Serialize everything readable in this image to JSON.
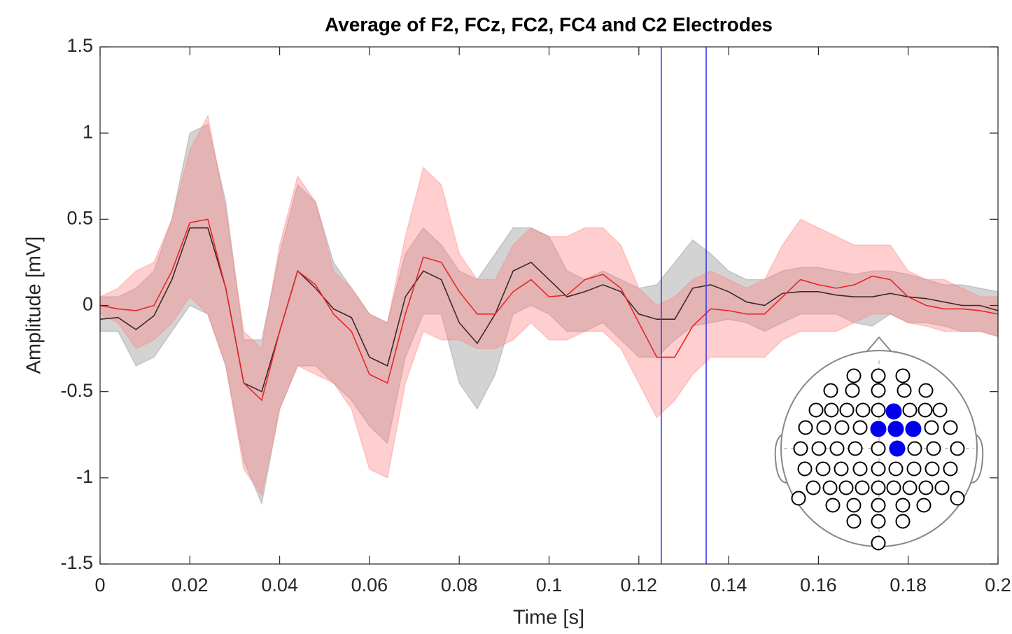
{
  "chart_data": {
    "type": "line",
    "title": "Average of F2, FCz, FC2, FC4 and C2 Electrodes",
    "x_label": "Time [s]",
    "y_label": "Amplitude [mV]",
    "xlim": [
      0,
      0.2
    ],
    "ylim": [
      -1.5,
      1.5
    ],
    "xticks": [
      0,
      0.02,
      0.04,
      0.06,
      0.08,
      0.1,
      0.12,
      0.14,
      0.16,
      0.18,
      0.2
    ],
    "yticks": [
      -1.5,
      -1,
      -0.5,
      0,
      0.5,
      1,
      1.5
    ],
    "x": [
      0,
      0.004,
      0.008,
      0.012,
      0.016,
      0.02,
      0.024,
      0.028,
      0.032,
      0.036,
      0.04,
      0.044,
      0.048,
      0.052,
      0.056,
      0.06,
      0.064,
      0.068,
      0.072,
      0.076,
      0.08,
      0.084,
      0.088,
      0.092,
      0.096,
      0.1,
      0.104,
      0.108,
      0.112,
      0.116,
      0.12,
      0.124,
      0.128,
      0.132,
      0.136,
      0.14,
      0.144,
      0.148,
      0.152,
      0.156,
      0.16,
      0.164,
      0.168,
      0.172,
      0.176,
      0.18,
      0.184,
      0.188,
      0.192,
      0.196,
      0.2
    ],
    "series": [
      {
        "color": "#3a2a2a",
        "band_color": "rgba(150,150,150,0.42)",
        "values": [
          -0.08,
          -0.07,
          -0.14,
          -0.06,
          0.15,
          0.45,
          0.45,
          0.1,
          -0.45,
          -0.5,
          -0.15,
          0.2,
          0.1,
          -0.02,
          -0.07,
          -0.3,
          -0.35,
          0.05,
          0.2,
          0.15,
          -0.1,
          -0.22,
          -0.05,
          0.2,
          0.25,
          0.15,
          0.05,
          0.08,
          0.12,
          0.08,
          -0.05,
          -0.08,
          -0.08,
          0.1,
          0.12,
          0.08,
          0.02,
          0.0,
          0.07,
          0.08,
          0.08,
          0.06,
          0.05,
          0.05,
          0.07,
          0.05,
          0.04,
          0.02,
          0.0,
          0.0,
          -0.03
        ],
        "upper": [
          0.05,
          0.05,
          0.1,
          0.2,
          0.5,
          1.0,
          1.05,
          0.6,
          -0.2,
          -0.2,
          0.3,
          0.7,
          0.6,
          0.25,
          0.1,
          -0.05,
          -0.1,
          0.3,
          0.45,
          0.35,
          0.2,
          0.15,
          0.3,
          0.45,
          0.45,
          0.4,
          0.2,
          0.15,
          0.2,
          0.15,
          0.1,
          0.12,
          0.25,
          0.38,
          0.3,
          0.2,
          0.15,
          0.15,
          0.2,
          0.22,
          0.22,
          0.2,
          0.18,
          0.2,
          0.2,
          0.18,
          0.15,
          0.12,
          0.12,
          0.1,
          0.08
        ],
        "lower": [
          -0.15,
          -0.15,
          -0.35,
          -0.3,
          -0.15,
          0.0,
          -0.05,
          -0.35,
          -0.9,
          -1.15,
          -0.6,
          -0.35,
          -0.35,
          -0.45,
          -0.55,
          -0.7,
          -0.8,
          -0.3,
          -0.05,
          -0.05,
          -0.45,
          -0.6,
          -0.4,
          -0.05,
          0.0,
          -0.05,
          -0.15,
          -0.15,
          -0.1,
          -0.2,
          -0.3,
          -0.3,
          -0.2,
          -0.12,
          -0.1,
          -0.08,
          -0.1,
          -0.15,
          -0.1,
          -0.05,
          -0.05,
          -0.05,
          -0.1,
          -0.12,
          -0.05,
          -0.1,
          -0.1,
          -0.12,
          -0.15,
          -0.15,
          -0.18
        ]
      },
      {
        "color": "#e8262a",
        "band_color": "rgba(255,130,130,0.38)",
        "values": [
          0.0,
          -0.02,
          -0.03,
          0.0,
          0.2,
          0.48,
          0.5,
          0.1,
          -0.45,
          -0.55,
          -0.15,
          0.2,
          0.12,
          -0.05,
          -0.15,
          -0.4,
          -0.45,
          -0.05,
          0.28,
          0.25,
          0.08,
          -0.05,
          -0.05,
          0.08,
          0.15,
          0.05,
          0.06,
          0.15,
          0.18,
          0.1,
          -0.1,
          -0.3,
          -0.3,
          -0.12,
          -0.02,
          -0.03,
          -0.05,
          -0.05,
          0.05,
          0.15,
          0.12,
          0.1,
          0.12,
          0.17,
          0.15,
          0.05,
          0.0,
          -0.02,
          -0.02,
          -0.03,
          -0.05
        ],
        "upper": [
          0.05,
          0.1,
          0.2,
          0.25,
          0.5,
          0.9,
          1.1,
          0.55,
          -0.15,
          -0.25,
          0.35,
          0.75,
          0.6,
          0.2,
          0.1,
          -0.05,
          -0.1,
          0.4,
          0.8,
          0.7,
          0.3,
          0.15,
          0.15,
          0.35,
          0.45,
          0.4,
          0.4,
          0.45,
          0.45,
          0.35,
          0.1,
          0.0,
          0.05,
          0.15,
          0.2,
          0.15,
          0.1,
          0.15,
          0.35,
          0.5,
          0.45,
          0.4,
          0.35,
          0.35,
          0.35,
          0.2,
          0.15,
          0.15,
          0.1,
          0.05,
          0.05
        ],
        "lower": [
          -0.05,
          -0.1,
          -0.25,
          -0.2,
          -0.1,
          0.05,
          -0.05,
          -0.35,
          -0.95,
          -1.1,
          -0.6,
          -0.35,
          -0.4,
          -0.45,
          -0.6,
          -0.95,
          -1.0,
          -0.45,
          -0.15,
          -0.2,
          -0.2,
          -0.25,
          -0.25,
          -0.2,
          -0.1,
          -0.2,
          -0.2,
          -0.15,
          -0.15,
          -0.25,
          -0.45,
          -0.65,
          -0.55,
          -0.4,
          -0.3,
          -0.3,
          -0.3,
          -0.3,
          -0.2,
          -0.15,
          -0.15,
          -0.15,
          -0.1,
          -0.05,
          -0.05,
          -0.1,
          -0.12,
          -0.15,
          -0.15,
          -0.15,
          -0.18
        ]
      }
    ],
    "markers": [
      0.125,
      0.135
    ],
    "marker_color": "#3a3af0"
  }
}
